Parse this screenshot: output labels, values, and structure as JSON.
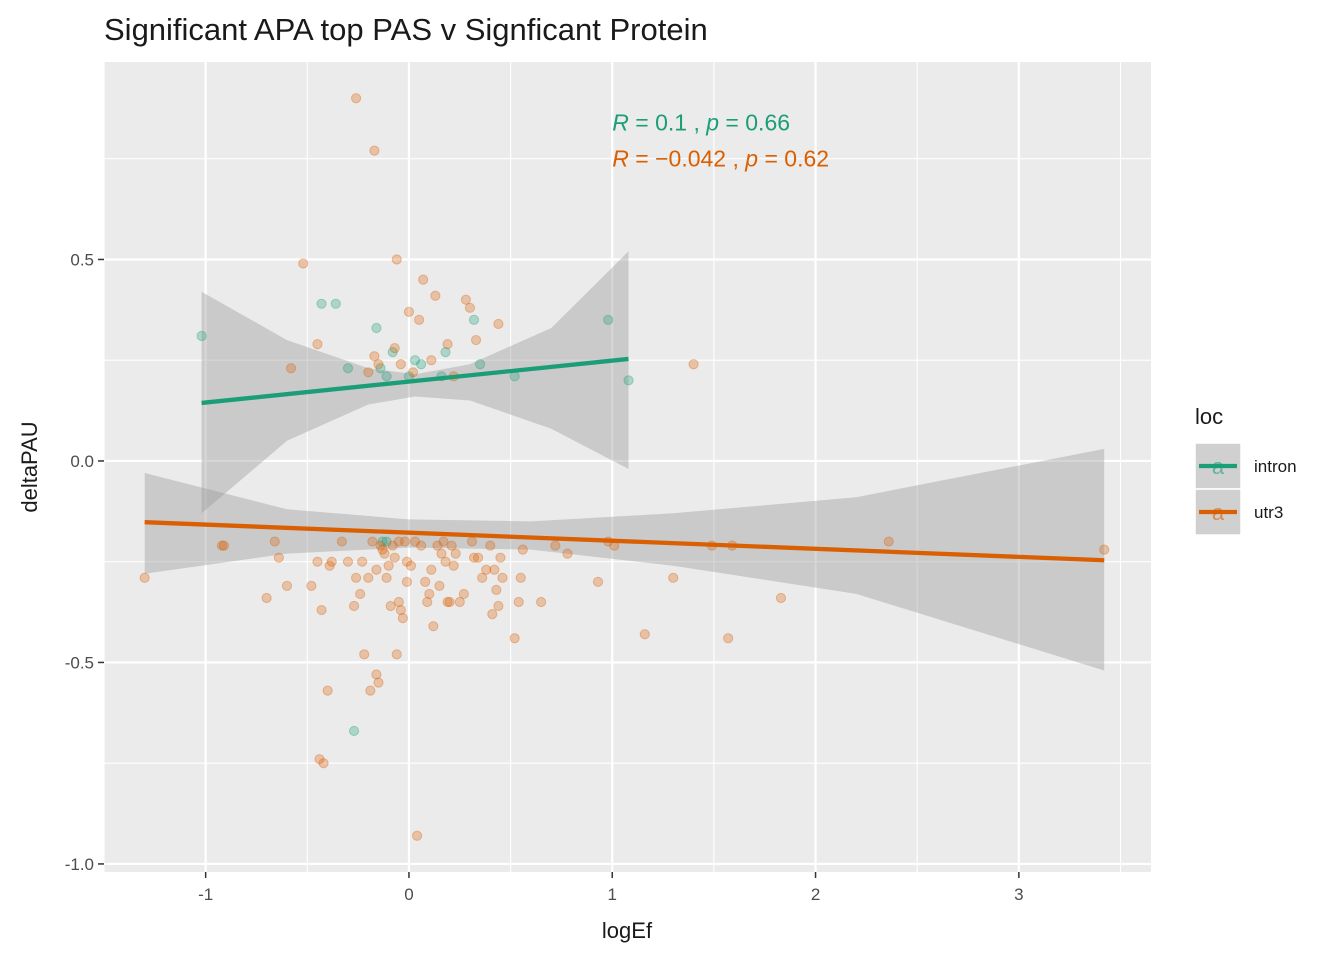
{
  "chart_data": {
    "type": "scatter",
    "title": "Significant APA top PAS v Signficant Protein",
    "xlabel": "logEf",
    "ylabel": "deltaPAU",
    "xlim": [
      -1.5,
      3.65
    ],
    "ylim": [
      -1.02,
      0.99
    ],
    "x_ticks": [
      -1,
      0,
      1,
      2,
      3
    ],
    "x_tick_labels": [
      "-1",
      "0",
      "1",
      "2",
      "3"
    ],
    "y_ticks": [
      -1.0,
      -0.5,
      0.0,
      0.5
    ],
    "y_tick_labels": [
      "-1.0",
      "-0.5",
      "0.0",
      "0.5"
    ],
    "grid": true,
    "legend": {
      "title": "loc",
      "position": "right",
      "key_glyph": "a",
      "entries": [
        {
          "label": "intron",
          "color": "#1B9E77"
        },
        {
          "label": "utr3",
          "color": "#D95F02"
        }
      ]
    },
    "annotations": [
      {
        "series": "intron",
        "color": "#1B9E77",
        "r_symbol": "R",
        "r_value": "0.1",
        "p_symbol": "p",
        "p_value": "0.66",
        "x": 1.0,
        "y": 0.84
      },
      {
        "series": "utr3",
        "color": "#D95F02",
        "r_symbol": "R",
        "r_value": "−0.042",
        "p_symbol": "p",
        "p_value": "0.62",
        "x": 1.0,
        "y": 0.75
      }
    ],
    "series": [
      {
        "name": "intron",
        "color": "#1B9E77",
        "fit": {
          "x_range": [
            -1.02,
            1.08
          ],
          "intercept": 0.197,
          "slope": 0.052
        },
        "band": {
          "x": [
            -1.02,
            -0.6,
            -0.2,
            0.03,
            0.3,
            0.7,
            1.08
          ],
          "lower": [
            -0.13,
            0.05,
            0.14,
            0.16,
            0.15,
            0.08,
            -0.02
          ],
          "upper": [
            0.42,
            0.3,
            0.23,
            0.215,
            0.24,
            0.33,
            0.52
          ]
        },
        "points": [
          {
            "x": -1.02,
            "y": 0.31
          },
          {
            "x": -0.43,
            "y": 0.39
          },
          {
            "x": -0.36,
            "y": 0.39
          },
          {
            "x": -0.3,
            "y": 0.23
          },
          {
            "x": -0.16,
            "y": 0.33
          },
          {
            "x": -0.14,
            "y": 0.23
          },
          {
            "x": -0.11,
            "y": 0.21
          },
          {
            "x": -0.08,
            "y": 0.27
          },
          {
            "x": 0.0,
            "y": 0.21
          },
          {
            "x": 0.03,
            "y": 0.25
          },
          {
            "x": 0.06,
            "y": 0.24
          },
          {
            "x": 0.16,
            "y": 0.21
          },
          {
            "x": 0.18,
            "y": 0.27
          },
          {
            "x": 0.32,
            "y": 0.35
          },
          {
            "x": 0.35,
            "y": 0.24
          },
          {
            "x": 0.52,
            "y": 0.21
          },
          {
            "x": 0.98,
            "y": 0.35
          },
          {
            "x": 1.08,
            "y": 0.2
          },
          {
            "x": -0.27,
            "y": -0.67
          },
          {
            "x": -0.13,
            "y": -0.2
          },
          {
            "x": -0.11,
            "y": -0.2
          }
        ]
      },
      {
        "name": "utr3",
        "color": "#D95F02",
        "fit": {
          "x_range": [
            -1.3,
            3.42
          ],
          "intercept": -0.178,
          "slope": -0.02
        },
        "band": {
          "x": [
            -1.3,
            -0.6,
            0.0,
            0.6,
            1.3,
            2.2,
            3.42
          ],
          "lower": [
            -0.28,
            -0.23,
            -0.215,
            -0.22,
            -0.26,
            -0.33,
            -0.52
          ],
          "upper": [
            -0.03,
            -0.12,
            -0.145,
            -0.15,
            -0.13,
            -0.09,
            0.03
          ]
        },
        "points": [
          {
            "x": -1.3,
            "y": -0.29
          },
          {
            "x": -0.92,
            "y": -0.21
          },
          {
            "x": -0.91,
            "y": -0.21
          },
          {
            "x": -0.7,
            "y": -0.34
          },
          {
            "x": -0.66,
            "y": -0.2
          },
          {
            "x": -0.64,
            "y": -0.24
          },
          {
            "x": -0.6,
            "y": -0.31
          },
          {
            "x": -0.58,
            "y": 0.23
          },
          {
            "x": -0.52,
            "y": 0.49
          },
          {
            "x": -0.48,
            "y": -0.31
          },
          {
            "x": -0.45,
            "y": 0.29
          },
          {
            "x": -0.45,
            "y": -0.25
          },
          {
            "x": -0.43,
            "y": -0.37
          },
          {
            "x": -0.44,
            "y": -0.74
          },
          {
            "x": -0.42,
            "y": -0.75
          },
          {
            "x": -0.4,
            "y": -0.57
          },
          {
            "x": -0.39,
            "y": -0.26
          },
          {
            "x": -0.38,
            "y": -0.25
          },
          {
            "x": -0.33,
            "y": -0.2
          },
          {
            "x": -0.3,
            "y": -0.25
          },
          {
            "x": -0.27,
            "y": -0.36
          },
          {
            "x": -0.26,
            "y": -0.29
          },
          {
            "x": -0.26,
            "y": 0.9
          },
          {
            "x": -0.24,
            "y": -0.33
          },
          {
            "x": -0.23,
            "y": -0.25
          },
          {
            "x": -0.22,
            "y": -0.48
          },
          {
            "x": -0.2,
            "y": 0.22
          },
          {
            "x": -0.2,
            "y": -0.29
          },
          {
            "x": -0.19,
            "y": -0.57
          },
          {
            "x": -0.18,
            "y": -0.2
          },
          {
            "x": -0.17,
            "y": 0.77
          },
          {
            "x": -0.17,
            "y": 0.26
          },
          {
            "x": -0.16,
            "y": -0.53
          },
          {
            "x": -0.16,
            "y": -0.27
          },
          {
            "x": -0.15,
            "y": 0.24
          },
          {
            "x": -0.15,
            "y": -0.55
          },
          {
            "x": -0.14,
            "y": -0.21
          },
          {
            "x": -0.13,
            "y": -0.22
          },
          {
            "x": -0.12,
            "y": -0.23
          },
          {
            "x": -0.11,
            "y": -0.29
          },
          {
            "x": -0.1,
            "y": -0.26
          },
          {
            "x": -0.09,
            "y": -0.36
          },
          {
            "x": -0.08,
            "y": -0.21
          },
          {
            "x": -0.07,
            "y": 0.28
          },
          {
            "x": -0.07,
            "y": -0.24
          },
          {
            "x": -0.06,
            "y": 0.5
          },
          {
            "x": -0.06,
            "y": -0.48
          },
          {
            "x": -0.05,
            "y": -0.35
          },
          {
            "x": -0.05,
            "y": -0.2
          },
          {
            "x": -0.04,
            "y": 0.24
          },
          {
            "x": -0.04,
            "y": -0.37
          },
          {
            "x": -0.03,
            "y": -0.39
          },
          {
            "x": -0.02,
            "y": -0.2
          },
          {
            "x": -0.01,
            "y": -0.25
          },
          {
            "x": -0.01,
            "y": -0.3
          },
          {
            "x": 0.0,
            "y": 0.37
          },
          {
            "x": 0.01,
            "y": -0.26
          },
          {
            "x": 0.02,
            "y": 0.22
          },
          {
            "x": 0.03,
            "y": -0.2
          },
          {
            "x": 0.04,
            "y": -0.93
          },
          {
            "x": 0.05,
            "y": 0.35
          },
          {
            "x": 0.06,
            "y": -0.21
          },
          {
            "x": 0.07,
            "y": 0.45
          },
          {
            "x": 0.08,
            "y": -0.3
          },
          {
            "x": 0.09,
            "y": -0.35
          },
          {
            "x": 0.1,
            "y": -0.33
          },
          {
            "x": 0.11,
            "y": -0.27
          },
          {
            "x": 0.11,
            "y": 0.25
          },
          {
            "x": 0.12,
            "y": -0.41
          },
          {
            "x": 0.13,
            "y": 0.41
          },
          {
            "x": 0.14,
            "y": -0.21
          },
          {
            "x": 0.15,
            "y": -0.31
          },
          {
            "x": 0.16,
            "y": -0.23
          },
          {
            "x": 0.17,
            "y": -0.2
          },
          {
            "x": 0.18,
            "y": -0.25
          },
          {
            "x": 0.19,
            "y": -0.35
          },
          {
            "x": 0.19,
            "y": 0.29
          },
          {
            "x": 0.2,
            "y": -0.35
          },
          {
            "x": 0.21,
            "y": -0.21
          },
          {
            "x": 0.22,
            "y": -0.26
          },
          {
            "x": 0.22,
            "y": 0.21
          },
          {
            "x": 0.23,
            "y": -0.23
          },
          {
            "x": 0.25,
            "y": -0.35
          },
          {
            "x": 0.27,
            "y": -0.33
          },
          {
            "x": 0.28,
            "y": 0.4
          },
          {
            "x": 0.3,
            "y": 0.38
          },
          {
            "x": 0.31,
            "y": -0.2
          },
          {
            "x": 0.32,
            "y": -0.24
          },
          {
            "x": 0.33,
            "y": 0.3
          },
          {
            "x": 0.34,
            "y": -0.24
          },
          {
            "x": 0.36,
            "y": -0.29
          },
          {
            "x": 0.38,
            "y": -0.27
          },
          {
            "x": 0.4,
            "y": -0.21
          },
          {
            "x": 0.41,
            "y": -0.38
          },
          {
            "x": 0.42,
            "y": -0.27
          },
          {
            "x": 0.43,
            "y": -0.32
          },
          {
            "x": 0.44,
            "y": -0.36
          },
          {
            "x": 0.44,
            "y": 0.34
          },
          {
            "x": 0.45,
            "y": -0.24
          },
          {
            "x": 0.46,
            "y": -0.29
          },
          {
            "x": 0.52,
            "y": -0.44
          },
          {
            "x": 0.54,
            "y": -0.35
          },
          {
            "x": 0.55,
            "y": -0.29
          },
          {
            "x": 0.56,
            "y": -0.22
          },
          {
            "x": 0.65,
            "y": -0.35
          },
          {
            "x": 0.72,
            "y": -0.21
          },
          {
            "x": 0.78,
            "y": -0.23
          },
          {
            "x": 0.93,
            "y": -0.3
          },
          {
            "x": 0.98,
            "y": -0.2
          },
          {
            "x": 1.01,
            "y": -0.21
          },
          {
            "x": 1.16,
            "y": -0.43
          },
          {
            "x": 1.3,
            "y": -0.29
          },
          {
            "x": 1.4,
            "y": 0.24
          },
          {
            "x": 1.49,
            "y": -0.21
          },
          {
            "x": 1.57,
            "y": -0.44
          },
          {
            "x": 1.59,
            "y": -0.21
          },
          {
            "x": 1.83,
            "y": -0.34
          },
          {
            "x": 2.36,
            "y": -0.2
          },
          {
            "x": 3.42,
            "y": -0.22
          }
        ]
      }
    ]
  }
}
